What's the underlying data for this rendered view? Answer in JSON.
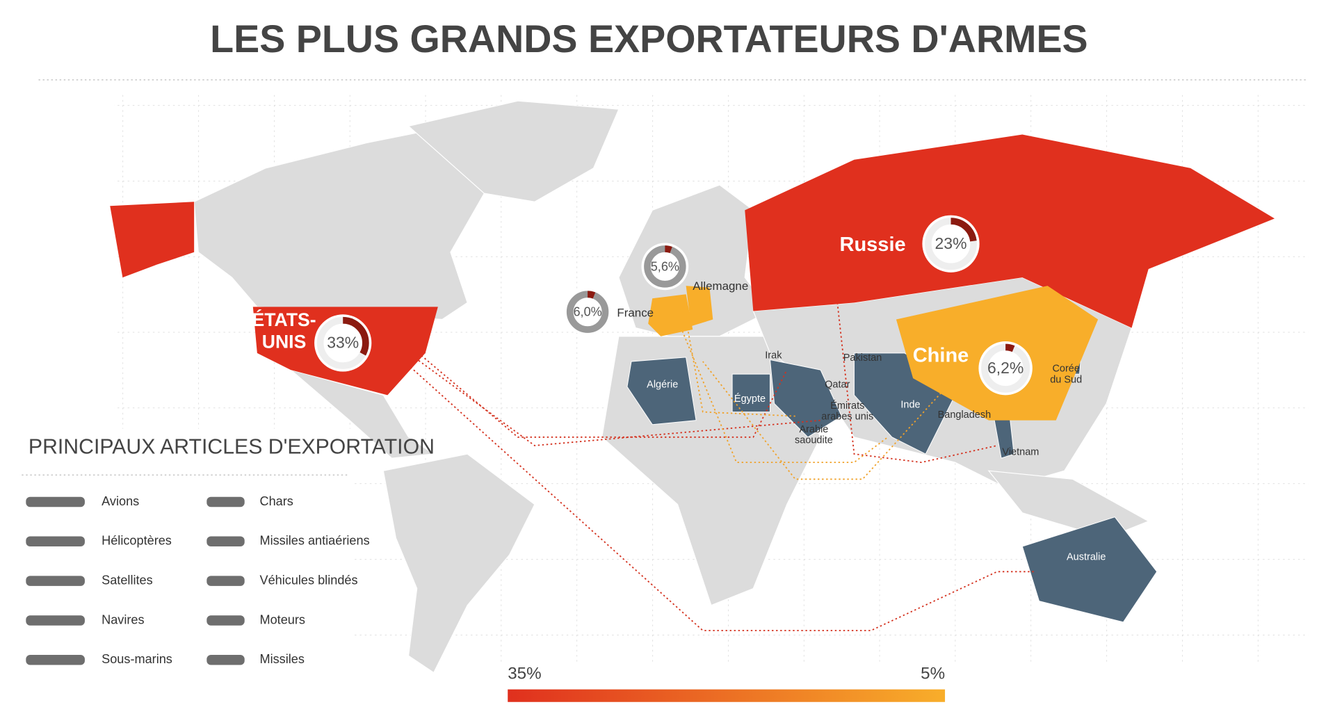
{
  "title": "LES PLUS GRANDS EXPORTATEURS D'ARMES",
  "exporters": [
    {
      "name_lines": [
        "ÉTATS-",
        "UNIS"
      ],
      "value": 33,
      "value_label": "33%",
      "color": "#e0301e"
    },
    {
      "name_lines": [
        "Russie"
      ],
      "value": 23,
      "value_label": "23%",
      "color": "#e0301e"
    },
    {
      "name_lines": [
        "Chine"
      ],
      "value": 6.2,
      "value_label": "6,2%",
      "color": "#f8ae2a"
    },
    {
      "name_lines": [
        "France"
      ],
      "value": 6.0,
      "value_label": "6,0%",
      "color": "#f8ae2a"
    },
    {
      "name_lines": [
        "Allemagne"
      ],
      "value": 5.6,
      "value_label": "5,6%",
      "color": "#f8ae2a"
    }
  ],
  "importers": [
    {
      "lines": [
        "Algérie"
      ]
    },
    {
      "lines": [
        "Égypte"
      ]
    },
    {
      "lines": [
        "Irak"
      ]
    },
    {
      "lines": [
        "Qatar"
      ]
    },
    {
      "lines": [
        "Émirats",
        "arabes unis"
      ]
    },
    {
      "lines": [
        "Arabie",
        "saoudite"
      ]
    },
    {
      "lines": [
        "Pakistan"
      ]
    },
    {
      "lines": [
        "Inde"
      ]
    },
    {
      "lines": [
        "Bangladesh"
      ]
    },
    {
      "lines": [
        "Vietnam"
      ]
    },
    {
      "lines": [
        "Corée",
        "du Sud"
      ]
    },
    {
      "lines": [
        "Australie"
      ]
    }
  ],
  "legend": {
    "title": "PRINCIPAUX ARTICLES D'EXPORTATION",
    "items": [
      "Avions",
      "Hélicoptères",
      "Satellites",
      "Navires",
      "Sous-marins",
      "Chars",
      "Missiles antiaériens",
      "Véhicules blindés",
      "Moteurs",
      "Missiles"
    ]
  },
  "scale": {
    "max": {
      "value": 35,
      "label": "35%"
    },
    "min": {
      "value": 5,
      "label": "5%"
    },
    "high_color": "#e0301e",
    "low_color": "#f8ae2a"
  }
}
